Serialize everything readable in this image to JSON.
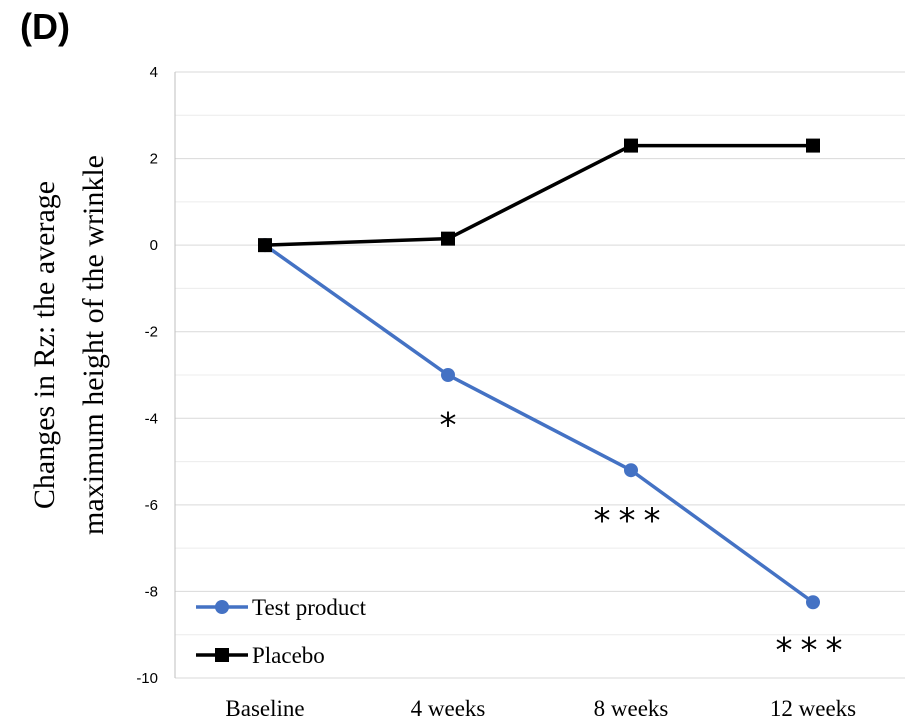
{
  "panel_label": "(D)",
  "chart_data": {
    "type": "line",
    "title": "",
    "xlabel": "",
    "ylabel": [
      "Changes in Rz: the average",
      "maximum height of the wrinkle"
    ],
    "categories": [
      "Baseline",
      "4 weeks",
      "8 weeks",
      "12 weeks"
    ],
    "ylim": [
      -10,
      4
    ],
    "yticks": [
      4,
      2,
      0,
      -2,
      -4,
      -6,
      -8,
      -10
    ],
    "grid": true,
    "legend_position": "bottom-left",
    "series": [
      {
        "name": "Test product",
        "values": [
          0,
          -3.0,
          -5.2,
          -8.25
        ],
        "color": "#4472C4",
        "marker": "circle"
      },
      {
        "name": "Placebo",
        "values": [
          0,
          0.15,
          2.3,
          2.3
        ],
        "color": "#000000",
        "marker": "square"
      }
    ],
    "annotations": [
      {
        "text": "*",
        "category": "4 weeks",
        "y": -4.1
      },
      {
        "text": "***",
        "category": "8 weeks",
        "y": -6.3
      },
      {
        "text": "***",
        "category": "12 weeks",
        "y": -9.3
      }
    ]
  }
}
